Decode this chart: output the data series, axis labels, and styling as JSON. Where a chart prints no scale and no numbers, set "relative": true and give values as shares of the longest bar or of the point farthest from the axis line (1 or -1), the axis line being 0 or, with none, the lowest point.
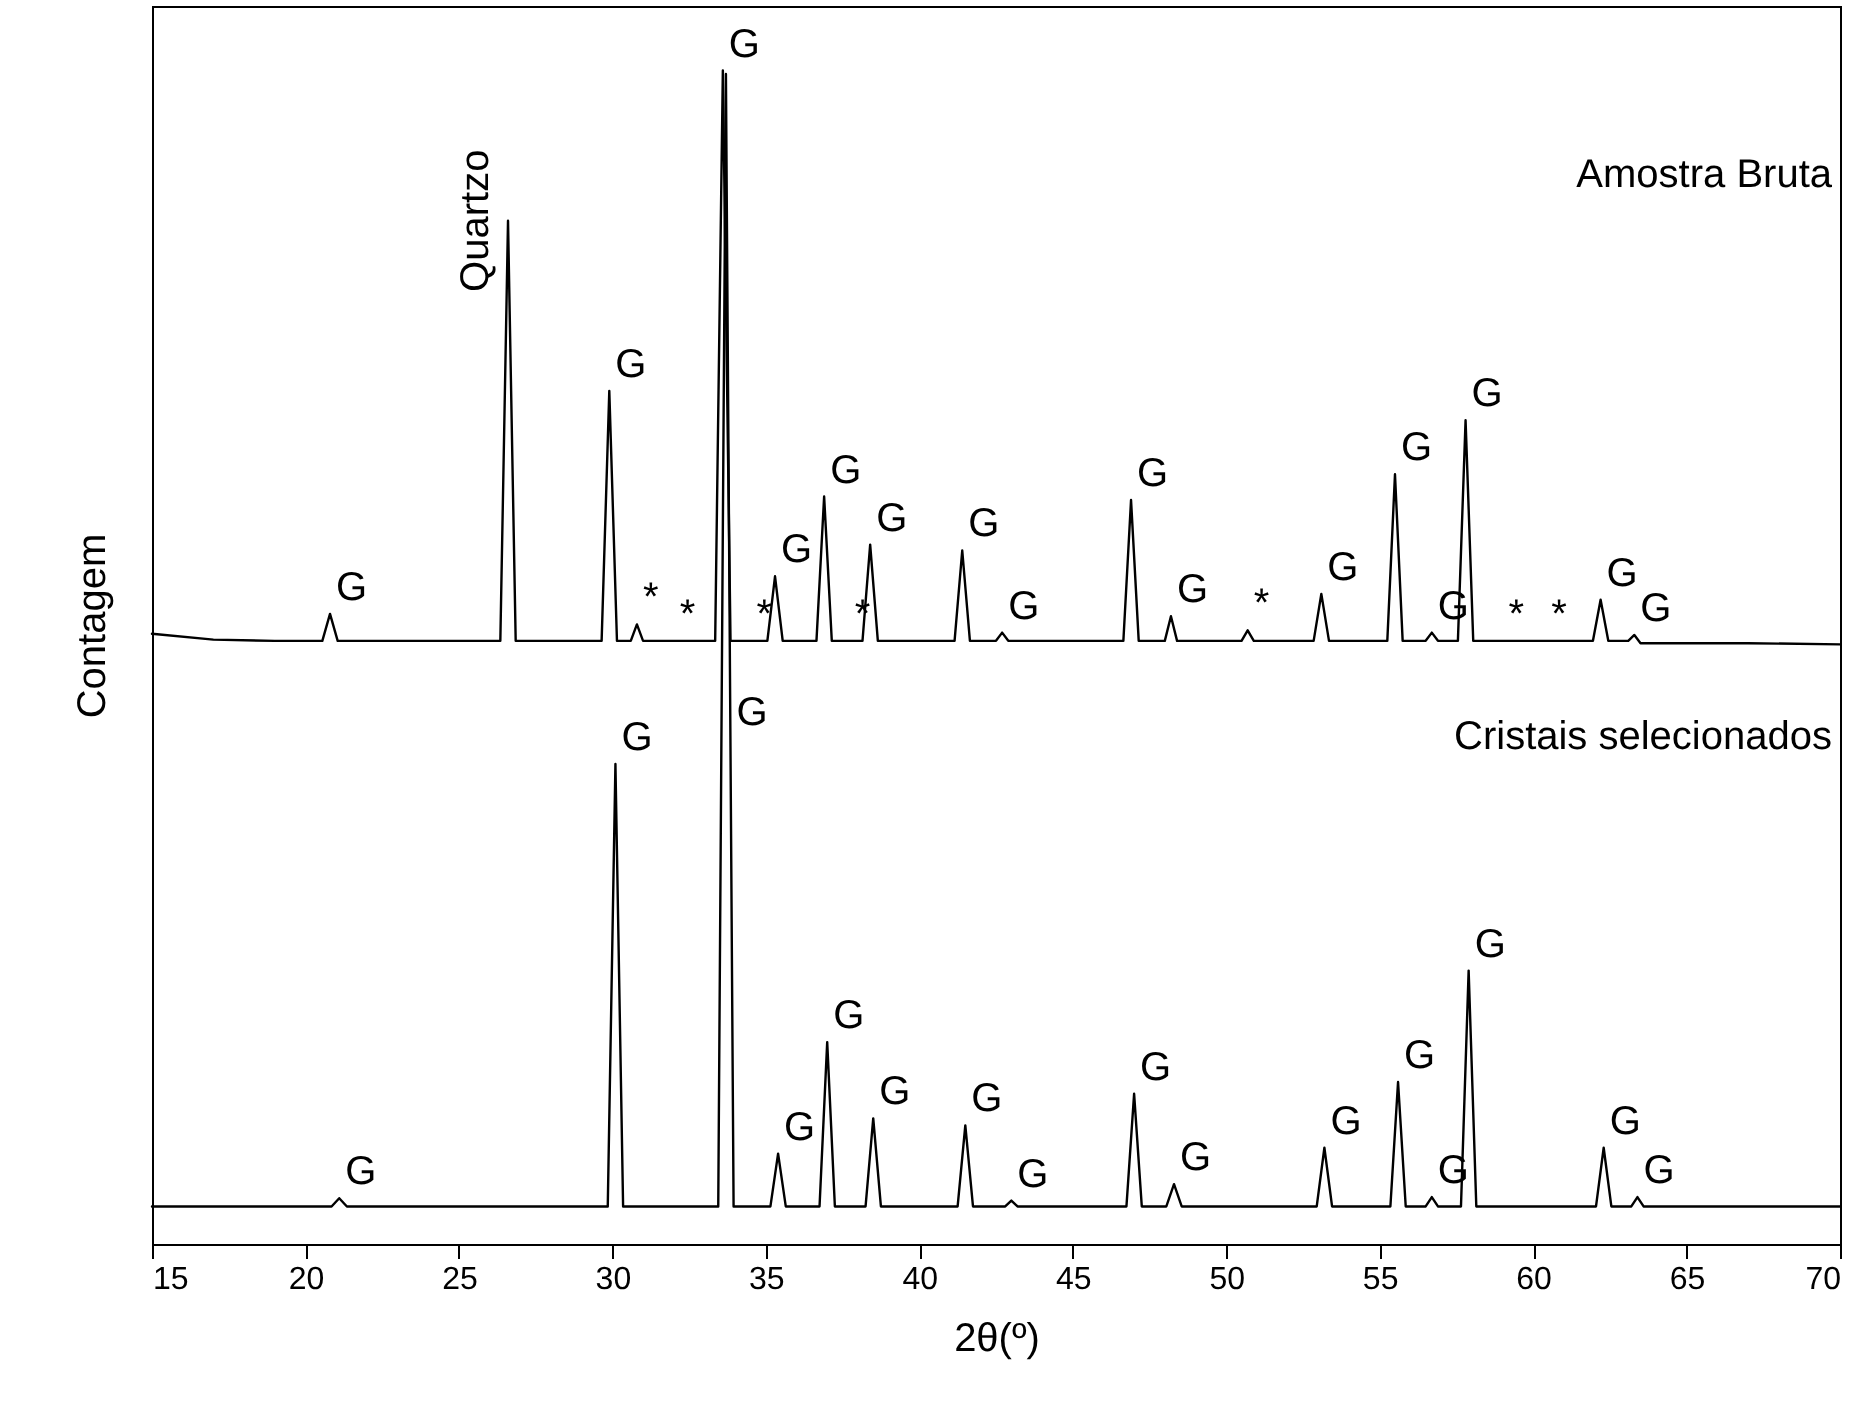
{
  "chart_data": {
    "type": "line",
    "relative": true,
    "xlabel": "2θ(º)",
    "ylabel": "Contagem",
    "xlim": [
      15,
      70
    ],
    "xticks": [
      15,
      20,
      25,
      30,
      35,
      40,
      45,
      50,
      55,
      60,
      65,
      70
    ],
    "grid": false,
    "legend": false,
    "series": [
      {
        "color": "#000000",
        "x": [
          15,
          17,
          19,
          20.55,
          20.8,
          21.05,
          23,
          26.35,
          26.6,
          26.85,
          29.65,
          29.9,
          30.15,
          30.6,
          30.8,
          31.0,
          33.35,
          33.6,
          33.85,
          35.05,
          35.3,
          35.55,
          36.65,
          36.9,
          37.15,
          38.15,
          38.4,
          38.65,
          41.15,
          41.4,
          41.65,
          42.5,
          42.7,
          42.9,
          46.65,
          46.9,
          47.15,
          48.0,
          48.2,
          48.4,
          50.5,
          50.7,
          50.9,
          52.85,
          53.1,
          53.35,
          55.25,
          55.5,
          55.75,
          56.5,
          56.7,
          56.9,
          57.55,
          57.8,
          58.05,
          61.95,
          62.2,
          62.45,
          63.1,
          63.3,
          63.5,
          67,
          70
        ],
        "values": [
          0.52,
          0.515,
          0.514,
          0.514,
          0.537,
          0.514,
          0.514,
          0.514,
          0.872,
          0.514,
          0.514,
          0.727,
          0.514,
          0.514,
          0.528,
          0.514,
          0.514,
          1,
          0.514,
          0.514,
          0.569,
          0.514,
          0.514,
          0.637,
          0.514,
          0.514,
          0.596,
          0.514,
          0.514,
          0.591,
          0.514,
          0.514,
          0.521,
          0.514,
          0.514,
          0.634,
          0.514,
          0.514,
          0.535,
          0.514,
          0.514,
          0.523,
          0.514,
          0.514,
          0.554,
          0.514,
          0.514,
          0.656,
          0.514,
          0.514,
          0.521,
          0.514,
          0.514,
          0.702,
          0.514,
          0.514,
          0.549,
          0.514,
          0.514,
          0.519,
          0.512,
          0.512,
          0.511
        ]
      },
      {
        "color": "#000000",
        "x": [
          15,
          18,
          20.85,
          21.1,
          21.35,
          29.85,
          30.1,
          30.35,
          33.45,
          33.7,
          33.95,
          35.15,
          35.4,
          35.65,
          36.75,
          37.0,
          37.25,
          38.25,
          38.5,
          38.75,
          41.25,
          41.5,
          41.75,
          42.8,
          43.0,
          43.2,
          46.75,
          47.0,
          47.25,
          48.05,
          48.3,
          48.55,
          52.95,
          53.2,
          53.45,
          55.35,
          55.6,
          55.85,
          56.5,
          56.7,
          56.9,
          57.65,
          57.9,
          58.15,
          62.05,
          62.3,
          62.55,
          63.2,
          63.4,
          63.6,
          70
        ],
        "values": [
          0.032,
          0.032,
          0.032,
          0.039,
          0.032,
          0.032,
          0.409,
          0.032,
          0.032,
          0.997,
          0.032,
          0.032,
          0.077,
          0.032,
          0.032,
          0.172,
          0.032,
          0.032,
          0.107,
          0.032,
          0.032,
          0.101,
          0.032,
          0.032,
          0.037,
          0.032,
          0.032,
          0.128,
          0.032,
          0.032,
          0.051,
          0.032,
          0.032,
          0.082,
          0.032,
          0.032,
          0.138,
          0.032,
          0.032,
          0.04,
          0.032,
          0.032,
          0.233,
          0.032,
          0.032,
          0.082,
          0.032,
          0.032,
          0.04,
          0.032,
          0.032
        ]
      }
    ],
    "annotations": [
      "Amostra Bruta",
      "Cristais selecionados",
      {
        "text": "Quartzo",
        "x": 26.6,
        "y": 0.872
      },
      {
        "text": "G",
        "x": 20.8,
        "y": 0.537
      },
      {
        "text": "G",
        "x": 29.9,
        "y": 0.727
      },
      {
        "text": "G",
        "x": 33.6,
        "y": 1
      },
      {
        "text": "G",
        "x": 35.3,
        "y": 0.569
      },
      {
        "text": "G",
        "x": 36.9,
        "y": 0.637
      },
      {
        "text": "G",
        "x": 38.4,
        "y": 0.596
      },
      {
        "text": "G",
        "x": 41.4,
        "y": 0.591
      },
      {
        "text": "G",
        "x": 42.7,
        "y": 0.521
      },
      {
        "text": "G",
        "x": 46.9,
        "y": 0.634
      },
      {
        "text": "G",
        "x": 48.2,
        "y": 0.535
      },
      {
        "text": "G",
        "x": 53.1,
        "y": 0.554
      },
      {
        "text": "G",
        "x": 55.5,
        "y": 0.656
      },
      {
        "text": "G",
        "x": 56.7,
        "y": 0.521
      },
      {
        "text": "G",
        "x": 57.8,
        "y": 0.702
      },
      {
        "text": "G",
        "x": 62.2,
        "y": 0.549
      },
      {
        "text": "G",
        "x": 63.3,
        "y": 0.519
      },
      {
        "text": "*",
        "x": 30.8,
        "y": 0.528
      },
      {
        "text": "*",
        "x": 32.0,
        "y": 0.514
      },
      {
        "text": "*",
        "x": 34.5,
        "y": 0.514
      },
      {
        "text": "*",
        "x": 37.7,
        "y": 0.514
      },
      {
        "text": "*",
        "x": 50.7,
        "y": 0.523
      },
      {
        "text": "*",
        "x": 59.0,
        "y": 0.514
      },
      {
        "text": "*",
        "x": 60.4,
        "y": 0.514
      },
      {
        "text": "G",
        "x": 21.1,
        "y": 0.039
      },
      {
        "text": "G",
        "x": 30.1,
        "y": 0.409
      },
      {
        "text": "G",
        "x": 33.85,
        "y": 0.43
      },
      {
        "text": "G",
        "x": 35.4,
        "y": 0.077
      },
      {
        "text": "G",
        "x": 37.0,
        "y": 0.172
      },
      {
        "text": "G",
        "x": 38.5,
        "y": 0.107
      },
      {
        "text": "G",
        "x": 41.5,
        "y": 0.101
      },
      {
        "text": "G",
        "x": 43.0,
        "y": 0.037
      },
      {
        "text": "G",
        "x": 47.0,
        "y": 0.128
      },
      {
        "text": "G",
        "x": 48.3,
        "y": 0.051
      },
      {
        "text": "G",
        "x": 53.2,
        "y": 0.082
      },
      {
        "text": "G",
        "x": 55.6,
        "y": 0.138
      },
      {
        "text": "G",
        "x": 56.7,
        "y": 0.04
      },
      {
        "text": "G",
        "x": 57.9,
        "y": 0.233
      },
      {
        "text": "G",
        "x": 62.3,
        "y": 0.082
      },
      {
        "text": "G",
        "x": 63.4,
        "y": 0.04
      }
    ]
  }
}
